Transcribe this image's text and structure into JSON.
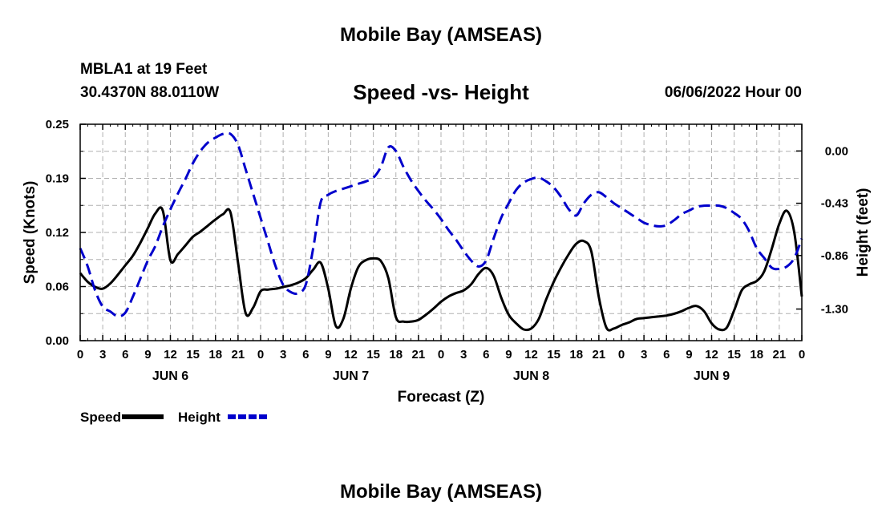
{
  "page": {
    "title": "Mobile Bay (AMSEAS)",
    "station": "MBLA1 at 19 Feet",
    "coords": "30.4370N  88.0110W",
    "subtitle": "Speed -vs- Height",
    "datetime": "06/06/2022 Hour 00",
    "bottom_title": "Mobile Bay (AMSEAS)"
  },
  "chart_data": {
    "type": "line",
    "xlabel": "Forecast (Z)",
    "ylabel_left": "Speed (Knots)",
    "ylabel_right": "Height (feet)",
    "xlim": [
      0,
      96
    ],
    "ylim_left": [
      0,
      0.25
    ],
    "ylim_right": [
      -1.56,
      0.22
    ],
    "yticks_left": [
      "0.00",
      "0.06",
      "0.12",
      "0.19",
      "0.25"
    ],
    "yticks_left_values": [
      0,
      0.0625,
      0.125,
      0.1875,
      0.25
    ],
    "yticks_right": [
      "0.00",
      "-0.43",
      "-0.86",
      "-1.30"
    ],
    "yticks_right_values": [
      0,
      -0.43,
      -0.86,
      -1.3
    ],
    "xtick_labels": [
      "0",
      "3",
      "6",
      "9",
      "12",
      "15",
      "18",
      "21",
      "0",
      "3",
      "6",
      "9",
      "12",
      "15",
      "18",
      "21",
      "0",
      "3",
      "6",
      "9",
      "12",
      "15",
      "18",
      "21",
      "0",
      "3",
      "6",
      "9",
      "12",
      "15",
      "18",
      "21",
      "0"
    ],
    "day_labels": [
      {
        "hour": 12,
        "label": "JUN 6"
      },
      {
        "hour": 36,
        "label": "JUN 7"
      },
      {
        "hour": 60,
        "label": "JUN 8"
      },
      {
        "hour": 84,
        "label": "JUN 9"
      }
    ],
    "grid": true,
    "legend": "bottom-left",
    "series": [
      {
        "name": "Speed",
        "axis": "left",
        "color": "#000000",
        "style": "solid",
        "x": [
          0,
          1,
          2,
          3,
          4,
          5,
          6,
          7,
          8,
          9,
          10,
          11,
          12,
          13,
          14,
          15,
          16,
          17,
          18,
          19,
          20,
          21,
          22,
          23,
          24,
          25,
          26,
          27,
          28,
          29,
          30,
          31,
          32,
          33,
          34,
          35,
          36,
          37,
          38,
          39,
          40,
          41,
          42,
          43,
          44,
          45,
          46,
          47,
          48,
          49,
          50,
          51,
          52,
          53,
          54,
          55,
          56,
          57,
          58,
          59,
          60,
          61,
          62,
          63,
          64,
          65,
          66,
          67,
          68,
          69,
          70,
          71,
          72,
          73,
          74,
          75,
          76,
          77,
          78,
          79,
          80,
          81,
          82,
          83,
          84,
          85,
          86,
          87,
          88,
          89,
          90,
          91,
          92,
          93,
          94,
          95,
          96
        ],
        "y": [
          0.078,
          0.068,
          0.062,
          0.06,
          0.066,
          0.076,
          0.087,
          0.098,
          0.113,
          0.13,
          0.147,
          0.15,
          0.093,
          0.1,
          0.11,
          0.12,
          0.126,
          0.133,
          0.14,
          0.146,
          0.148,
          0.09,
          0.032,
          0.038,
          0.057,
          0.059,
          0.06,
          0.062,
          0.064,
          0.067,
          0.072,
          0.082,
          0.09,
          0.06,
          0.017,
          0.025,
          0.06,
          0.085,
          0.093,
          0.095,
          0.092,
          0.072,
          0.027,
          0.022,
          0.022,
          0.024,
          0.03,
          0.037,
          0.045,
          0.051,
          0.055,
          0.058,
          0.065,
          0.077,
          0.084,
          0.075,
          0.05,
          0.03,
          0.02,
          0.013,
          0.014,
          0.025,
          0.048,
          0.068,
          0.085,
          0.1,
          0.112,
          0.115,
          0.103,
          0.05,
          0.015,
          0.014,
          0.018,
          0.021,
          0.025,
          0.026,
          0.027,
          0.028,
          0.029,
          0.031,
          0.034,
          0.038,
          0.04,
          0.034,
          0.02,
          0.013,
          0.015,
          0.035,
          0.058,
          0.065,
          0.069,
          0.08,
          0.106,
          0.135,
          0.15,
          0.125,
          0.051
        ]
      },
      {
        "name": "Height",
        "axis": "right",
        "color": "#0000cc",
        "style": "dashed",
        "x": [
          0,
          1,
          2,
          3,
          4,
          5,
          6,
          7,
          8,
          9,
          10,
          11,
          12,
          13,
          14,
          15,
          16,
          17,
          18,
          19,
          20,
          21,
          22,
          23,
          24,
          25,
          26,
          27,
          28,
          29,
          30,
          31,
          32,
          33,
          34,
          35,
          36,
          37,
          38,
          39,
          40,
          41,
          42,
          43,
          44,
          45,
          46,
          47,
          48,
          49,
          50,
          51,
          52,
          53,
          54,
          55,
          56,
          57,
          58,
          59,
          60,
          61,
          62,
          63,
          64,
          65,
          66,
          67,
          68,
          69,
          70,
          71,
          72,
          73,
          74,
          75,
          76,
          77,
          78,
          79,
          80,
          81,
          82,
          83,
          84,
          85,
          86,
          87,
          88,
          89,
          90,
          91,
          92,
          93,
          94,
          95,
          96
        ],
        "y": [
          -0.8,
          -0.95,
          -1.15,
          -1.28,
          -1.32,
          -1.36,
          -1.33,
          -1.2,
          -1.05,
          -0.9,
          -0.78,
          -0.62,
          -0.48,
          -0.35,
          -0.23,
          -0.1,
          0.0,
          0.07,
          0.11,
          0.14,
          0.14,
          0.05,
          -0.15,
          -0.35,
          -0.55,
          -0.75,
          -0.95,
          -1.1,
          -1.16,
          -1.17,
          -1.1,
          -0.8,
          -0.42,
          -0.36,
          -0.33,
          -0.31,
          -0.29,
          -0.27,
          -0.25,
          -0.22,
          -0.13,
          0.03,
          0.0,
          -0.13,
          -0.24,
          -0.33,
          -0.41,
          -0.48,
          -0.56,
          -0.65,
          -0.73,
          -0.82,
          -0.9,
          -0.95,
          -0.9,
          -0.72,
          -0.55,
          -0.43,
          -0.32,
          -0.26,
          -0.23,
          -0.22,
          -0.25,
          -0.3,
          -0.38,
          -0.48,
          -0.53,
          -0.43,
          -0.36,
          -0.34,
          -0.38,
          -0.43,
          -0.47,
          -0.51,
          -0.55,
          -0.59,
          -0.61,
          -0.62,
          -0.61,
          -0.57,
          -0.52,
          -0.49,
          -0.46,
          -0.45,
          -0.45,
          -0.45,
          -0.47,
          -0.51,
          -0.56,
          -0.66,
          -0.8,
          -0.88,
          -0.96,
          -0.97,
          -0.95,
          -0.88,
          -0.72
        ]
      }
    ]
  }
}
